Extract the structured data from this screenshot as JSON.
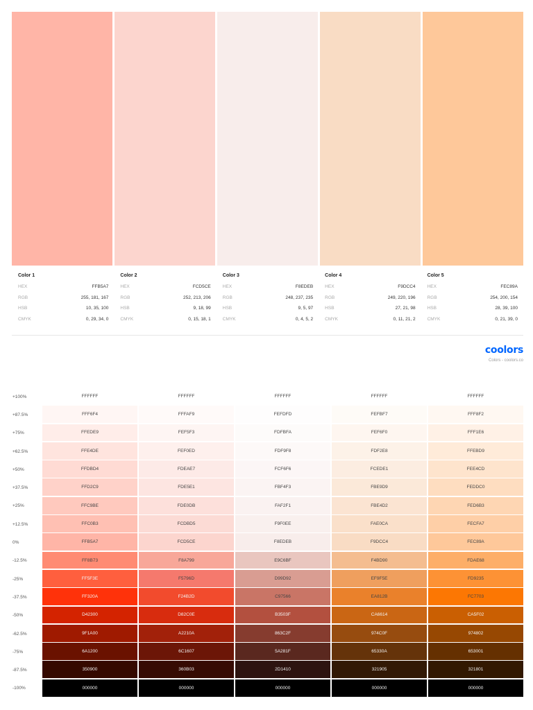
{
  "palette": [
    {
      "hex": "#FFB5A7"
    },
    {
      "hex": "#FCD5CE"
    },
    {
      "hex": "#F8EDEB"
    },
    {
      "hex": "#F9DCC4"
    },
    {
      "hex": "#FEC89A"
    }
  ],
  "colors": [
    {
      "name": "Color 1",
      "hex": "FFB5A7",
      "rgb": "255, 181, 167",
      "hsb": "10, 35, 100",
      "cmyk": "0, 29, 34, 0"
    },
    {
      "name": "Color 2",
      "hex": "FCD5CE",
      "rgb": "252, 213, 206",
      "hsb": "9, 18, 99",
      "cmyk": "0, 15, 18, 1"
    },
    {
      "name": "Color 3",
      "hex": "F8EDEB",
      "rgb": "248, 237, 235",
      "hsb": "9, 5, 97",
      "cmyk": "0, 4, 5, 2"
    },
    {
      "name": "Color 4",
      "hex": "F9DCC4",
      "rgb": "249, 220, 196",
      "hsb": "27, 21, 98",
      "cmyk": "0, 11, 21, 2"
    },
    {
      "name": "Color 5",
      "hex": "FEC89A",
      "rgb": "254, 200, 154",
      "hsb": "28, 39, 100",
      "cmyk": "0, 21, 39, 0"
    }
  ],
  "labels": {
    "hex": "HEX",
    "rgb": "RGB",
    "hsb": "HSB",
    "cmyk": "CMYK"
  },
  "brand": {
    "logo": "coolors",
    "subtitle": "Colors - coolors.co",
    "color": "#0066ff"
  },
  "shades": [
    {
      "label": "+100%",
      "values": [
        "FFFFFF",
        "FFFFFF",
        "FFFFFF",
        "FFFFFF",
        "FFFFFF"
      ]
    },
    {
      "label": "+87.5%",
      "values": [
        "FFF6F4",
        "FFFAF9",
        "FEFDFD",
        "FEFBF7",
        "FFF8F2"
      ]
    },
    {
      "label": "+75%",
      "values": [
        "FFEDE9",
        "FEF5F3",
        "FDFBFA",
        "FEF6F0",
        "FFF1E6"
      ]
    },
    {
      "label": "+62.5%",
      "values": [
        "FFE4DE",
        "FEF0ED",
        "FDF9F8",
        "FDF2E8",
        "FFEBD9"
      ]
    },
    {
      "label": "+50%",
      "values": [
        "FFDBD4",
        "FDEAE7",
        "FCF6F6",
        "FCEDE1",
        "FEE4CD"
      ]
    },
    {
      "label": "+37.5%",
      "values": [
        "FFD2C9",
        "FDE5E1",
        "FBF4F3",
        "FBE9D9",
        "FEDDC0"
      ]
    },
    {
      "label": "+25%",
      "values": [
        "FFC9BE",
        "FDE0DB",
        "FAF2F1",
        "FBE4D2",
        "FED6B3"
      ]
    },
    {
      "label": "+12.5%",
      "values": [
        "FFC0B3",
        "FCDBD5",
        "F9F0EE",
        "FAE0CA",
        "FECFA7"
      ]
    },
    {
      "label": "0%",
      "values": [
        "FFB5A7",
        "FCD5CE",
        "F8EDEB",
        "F9DCC4",
        "FEC89A"
      ]
    },
    {
      "label": "-12.5%",
      "values": [
        "FF8B73",
        "F8A799",
        "E9C6BF",
        "F4BD90",
        "FDAE68"
      ]
    },
    {
      "label": "-25%",
      "values": [
        "FF5F3E",
        "F5796D",
        "D99D92",
        "EF9F5E",
        "FD9235"
      ]
    },
    {
      "label": "-37.5%",
      "values": [
        "FF320A",
        "F24B2D",
        "C97566",
        "EA812B",
        "FC7703"
      ]
    },
    {
      "label": "-50%",
      "values": [
        "D42300",
        "D82C0E",
        "B3503F",
        "CA6614",
        "CA5F02"
      ]
    },
    {
      "label": "-62.5%",
      "values": [
        "9F1A00",
        "A2210A",
        "863C2F",
        "974C0F",
        "974802"
      ]
    },
    {
      "label": "-75%",
      "values": [
        "6A1200",
        "6C1607",
        "5A281F",
        "65330A",
        "653001"
      ]
    },
    {
      "label": "-87.5%",
      "values": [
        "350900",
        "360B03",
        "2D1410",
        "321905",
        "321801"
      ]
    },
    {
      "label": "-100%",
      "values": [
        "000000",
        "000000",
        "000000",
        "000000",
        "000000"
      ]
    }
  ]
}
